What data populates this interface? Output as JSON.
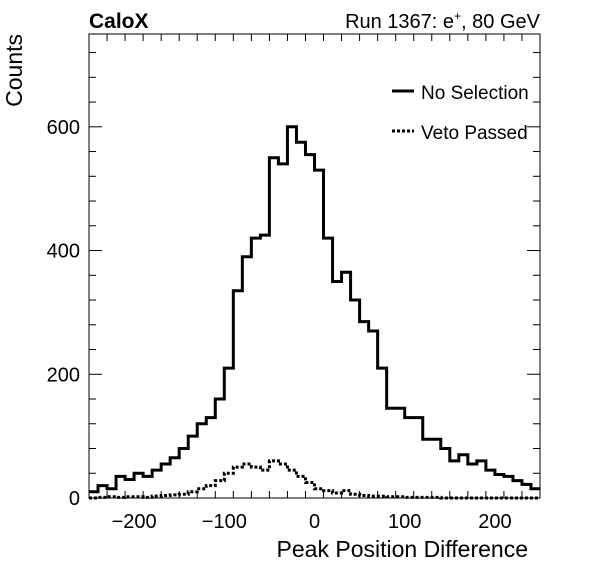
{
  "header": {
    "experiment": "CaloX",
    "run_prefix": "Run 1367: e",
    "run_superscript": "+",
    "run_suffix": ", 80 GeV"
  },
  "chart_data": {
    "type": "line",
    "style": "step-histogram",
    "xlabel": "Peak Position Difference",
    "ylabel": "Counts",
    "xlim": [
      -250,
      250
    ],
    "ylim": [
      0,
      750
    ],
    "x_ticks": [
      -200,
      -100,
      0,
      100,
      200
    ],
    "x_tick_labels": [
      "−200",
      "−100",
      "0",
      "100",
      "200"
    ],
    "y_ticks": [
      0,
      200,
      400,
      600
    ],
    "y_tick_labels": [
      "0",
      "200",
      "400",
      "600"
    ],
    "legend_position": "top-right",
    "bin_edges_start": -250,
    "bin_width": 10,
    "series": [
      {
        "name": "No Selection",
        "line": "solid",
        "values": [
          10,
          20,
          15,
          35,
          30,
          40,
          35,
          45,
          55,
          65,
          80,
          100,
          120,
          130,
          160,
          210,
          335,
          390,
          420,
          425,
          550,
          540,
          600,
          575,
          555,
          530,
          420,
          350,
          365,
          320,
          285,
          270,
          210,
          145,
          145,
          130,
          130,
          95,
          95,
          80,
          60,
          70,
          55,
          60,
          45,
          38,
          35,
          28,
          22,
          15
        ]
      },
      {
        "name": "Veto Passed",
        "line": "dotted",
        "values": [
          0,
          1,
          2,
          1,
          2,
          2,
          1,
          3,
          4,
          5,
          6,
          10,
          15,
          20,
          28,
          40,
          50,
          55,
          50,
          45,
          60,
          55,
          45,
          35,
          25,
          15,
          12,
          8,
          12,
          6,
          4,
          3,
          3,
          2,
          2,
          1,
          1,
          1,
          1,
          0,
          0,
          0,
          0,
          0,
          0,
          0,
          0,
          0,
          0,
          0
        ]
      }
    ]
  }
}
